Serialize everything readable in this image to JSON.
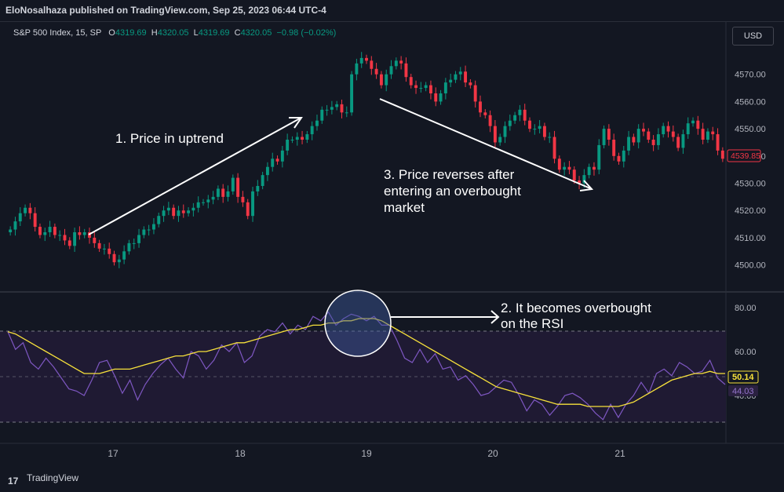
{
  "header": {
    "published": "EloNosalhaza published on TradingView.com, Sep 25, 2023 06:44 UTC-4"
  },
  "legend": {
    "symbol": "S&P 500 Index, 15, SP",
    "o_label": "O",
    "o_value": "4319.69",
    "h_label": "H",
    "h_value": "4320.05",
    "l_label": "L",
    "l_value": "4319.69",
    "c_label": "C",
    "c_value": "4320.05",
    "change": "−0.98 (−0.02%)"
  },
  "currency_button": "USD",
  "footer": {
    "brand": "TradingView",
    "logo_mark": "17"
  },
  "annotations": {
    "a1": "1. Price in uptrend",
    "a2_line1": "2. It becomes overbought",
    "a2_line2": "on the RSI",
    "a3_line1": "3. Price reverses after",
    "a3_line2": "entering an overbought",
    "a3_line3": "market"
  },
  "colors": {
    "up": "#089981",
    "down": "#f23645",
    "background": "#131722",
    "rsi_line": "#7e57c2",
    "rsi_ma": "#f7e13b",
    "band_fill": "#2a2140"
  },
  "chart_data": [
    {
      "type": "candlestick",
      "title": "S&P 500 Index, 15, SP",
      "x_ticks": [
        "17",
        "18",
        "19",
        "20",
        "21"
      ],
      "y_ticks": [
        "4500.00",
        "4510.00",
        "4520.00",
        "4530.00",
        "4540.00",
        "4550.00",
        "4560.00",
        "4570.00"
      ],
      "ylim": [
        4495,
        4580
      ],
      "last_price": "4539.85",
      "close_series": [
        4513,
        4516,
        4519,
        4521,
        4519,
        4514,
        4511,
        4512,
        4514,
        4511,
        4511,
        4509,
        4507,
        4512,
        4511,
        4512,
        4510,
        4508,
        4506,
        4506,
        4504,
        4501,
        4502,
        4505,
        4508,
        4508,
        4511,
        4513,
        4513,
        4515,
        4518,
        4520,
        4521,
        4518,
        4520,
        4519,
        4520,
        4521,
        4523,
        4523,
        4524,
        4525,
        4528,
        4525,
        4527,
        4532,
        4525,
        4523,
        4518,
        4527,
        4529,
        4533,
        4536,
        4539,
        4538,
        4542,
        4546,
        4546,
        4547,
        4546,
        4548,
        4551,
        4553,
        4557,
        4557,
        4558,
        4559,
        4556,
        4556,
        4570,
        4574,
        4576,
        4575,
        4572,
        4570,
        4566,
        4570,
        4573,
        4575,
        4574,
        4569,
        4566,
        4565,
        4565,
        4566,
        4563,
        4560,
        4563,
        4567,
        4568,
        4570,
        4571,
        4567,
        4566,
        4560,
        4556,
        4555,
        4551,
        4545,
        4547,
        4551,
        4553,
        4555,
        4557,
        4553,
        4550,
        4550,
        4551,
        4547,
        4547,
        4539,
        4535,
        4536,
        4535,
        4531,
        4530,
        4533,
        4536,
        4535,
        4544,
        4550,
        4546,
        4540,
        4538,
        4542,
        4547,
        4545,
        4550,
        4549,
        4546,
        4544,
        4548,
        4551,
        4549,
        4547,
        4543,
        4548,
        4552,
        4553,
        4550,
        4546,
        4549,
        4548,
        4542,
        4539
      ],
      "up_color": "#089981",
      "down_color": "#f23645"
    },
    {
      "type": "line",
      "title": "RSI",
      "y_ticks": [
        "80.00",
        "60.00",
        "40.00"
      ],
      "ylim": [
        20,
        85
      ],
      "bands": [
        70,
        50,
        30
      ],
      "series": [
        {
          "values": [
            69,
            61,
            64,
            55,
            52,
            57,
            53,
            48,
            43,
            42,
            40,
            47,
            55,
            56,
            49,
            41,
            47,
            38,
            45,
            50,
            54,
            57,
            52,
            48,
            60,
            58,
            52,
            56,
            63,
            60,
            64,
            55,
            58,
            67,
            70,
            69,
            73,
            68,
            72,
            70,
            76,
            74,
            78,
            72,
            75,
            77,
            76,
            74,
            76,
            72,
            72,
            65,
            57,
            55,
            61,
            55,
            59,
            52,
            53,
            47,
            49,
            45,
            40,
            41,
            44,
            47,
            46,
            40,
            33,
            38,
            36,
            31,
            35,
            40,
            41,
            39,
            36,
            32,
            29,
            36,
            30,
            36,
            40,
            46,
            41,
            50,
            52,
            49,
            55,
            53,
            50,
            51,
            56,
            48,
            45
          ]
        },
        {
          "values": [
            69,
            68,
            66,
            64,
            62,
            60,
            58,
            56,
            54,
            52,
            50,
            50,
            50,
            51,
            52,
            52,
            52,
            53,
            54,
            55,
            56,
            57,
            58,
            58,
            59,
            60,
            60,
            61,
            62,
            63,
            64,
            64,
            65,
            66,
            67,
            68,
            69,
            70,
            70,
            71,
            72,
            72,
            73,
            73,
            74,
            74,
            75,
            75,
            75,
            74,
            72,
            70,
            68,
            66,
            64,
            62,
            60,
            58,
            56,
            54,
            52,
            50,
            48,
            46,
            44,
            43,
            42,
            41,
            40,
            39,
            38,
            37,
            36,
            36,
            36,
            36,
            35,
            35,
            35,
            35,
            35,
            36,
            37,
            39,
            41,
            43,
            45,
            47,
            48,
            49,
            50,
            50,
            51,
            50,
            50
          ]
        }
      ],
      "last_ma": "50.14",
      "last_rsi": "44.03"
    }
  ]
}
